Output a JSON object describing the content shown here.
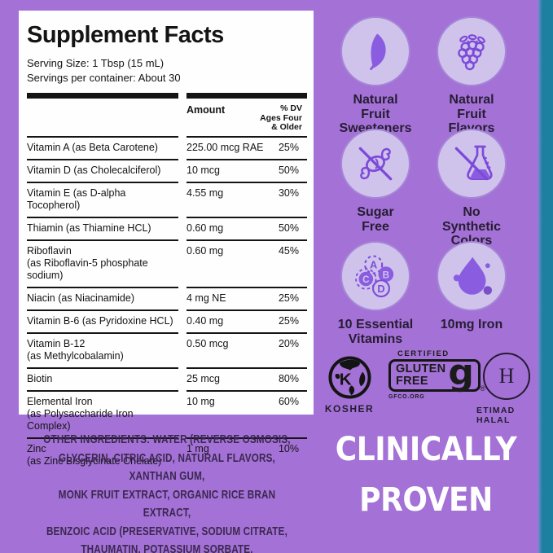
{
  "supplement_facts": {
    "title": "Supplement Facts",
    "serving_size": "Serving Size: 1 Tbsp (15 mL)",
    "servings_per_container": "Servings per container: About 30",
    "amount_header": "Amount",
    "dv_header_lines": [
      "% DV",
      "Ages Four",
      "& Older"
    ],
    "nutrients": [
      {
        "name": "Vitamin A (as Beta Carotene)",
        "name2": "",
        "amount": "225.00 mcg RAE",
        "dv": "25%"
      },
      {
        "name": "Vitamin D (as Cholecalciferol)",
        "name2": "",
        "amount": "10 mcg",
        "dv": "50%"
      },
      {
        "name": "Vitamin E (as D-alpha Tocopherol)",
        "name2": "",
        "amount": "4.55 mg",
        "dv": "30%"
      },
      {
        "name": "Thiamin (as Thiamine HCL)",
        "name2": "",
        "amount": "0.60 mg",
        "dv": "50%"
      },
      {
        "name": "Riboflavin",
        "name2": "(as Riboflavin-5 phosphate sodium)",
        "amount": "0.60 mg",
        "dv": "45%"
      },
      {
        "name": "Niacin (as Niacinamide)",
        "name2": "",
        "amount": "4 mg NE",
        "dv": "25%"
      },
      {
        "name": "Vitamin B-6 (as Pyridoxine HCL)",
        "name2": "",
        "amount": "0.40 mg",
        "dv": "25%"
      },
      {
        "name": "Vitamin B-12",
        "name2": "(as Methylcobalamin)",
        "amount": "0.50 mcg",
        "dv": "20%"
      },
      {
        "name": "Biotin",
        "name2": "",
        "amount": "25 mcg",
        "dv": "80%"
      },
      {
        "name": "Elemental Iron",
        "name2": "(as Polysaccharide Iron Complex)",
        "amount": "10 mg",
        "dv": "60%"
      },
      {
        "name": "Zinc",
        "name2": "(as Zinc Bisglycinate Chelate)",
        "amount": "1 mg",
        "dv": "10%"
      }
    ]
  },
  "other_ingredients_lines": [
    "OTHER INGREDIENTS: WATER (REVERSE OSMOSIS,",
    "GLYCERIN, CITRIC ACID, NATURAL FLAVORS, XANTHAN GUM,",
    "MONK FRUIT EXTRACT, ORGANIC RICE BRAN EXTRACT,",
    "BENZOIC ACID (PRESERVATIVE, SODIUM CITRATE,",
    "THAUMATIN, POTASSIUM SORBATE."
  ],
  "features": [
    {
      "icon": "leaf-icon",
      "label_lines": [
        "Natural",
        "Fruit",
        "Sweeteners"
      ]
    },
    {
      "icon": "berry-icon",
      "label_lines": [
        "Natural",
        "Fruit",
        "Flavors"
      ]
    },
    {
      "icon": "no-sugar-icon",
      "label_lines": [
        "Sugar",
        "Free"
      ]
    },
    {
      "icon": "no-synthetic-colors-icon",
      "label_lines": [
        "No",
        "Synthetic",
        "Colors"
      ]
    },
    {
      "icon": "vitamins-icon",
      "label_lines": [
        "10 Essential",
        "Vitamins"
      ],
      "letters": [
        "A",
        "B",
        "C",
        "D"
      ]
    },
    {
      "icon": "iron-drop-icon",
      "label_lines": [
        "10mg Iron"
      ]
    }
  ],
  "badges": {
    "kosher": {
      "label": "KOSHER",
      "letter": "K"
    },
    "gluten_free": {
      "certified": "CERTIFIED",
      "word1": "GLUTEN",
      "word2": "FREE",
      "g": "g",
      "registered": "®",
      "org": "GFCO.ORG"
    },
    "halal": {
      "label": "ETIMAD HALAL",
      "monogram": "H"
    }
  },
  "claim_lines": [
    "CLINICALLY",
    "PROVEN"
  ],
  "colors": {
    "background_purple": "#a471d6",
    "teal_edge": "#1d80a0",
    "circle_fill": "#cfc3ec",
    "icon_purple": "#8a5ce0",
    "icon_stroke": "#7c4ad8",
    "dark_text": "#261d33",
    "ingredients_text": "#3a284f",
    "black": "#141414",
    "claim_white": "#ffffff"
  }
}
